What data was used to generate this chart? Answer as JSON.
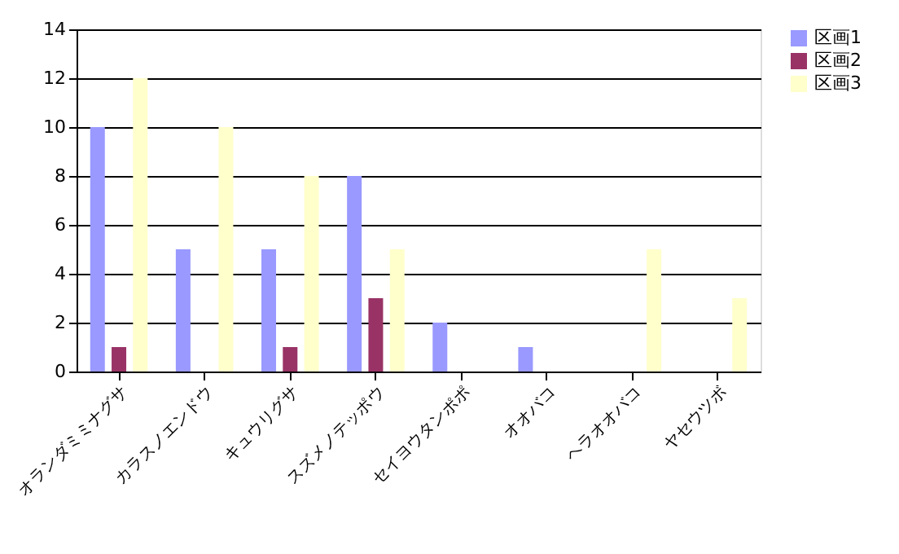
{
  "chart_data": {
    "type": "bar",
    "categories": [
      "オランダミミナグサ",
      "カラスノエンドウ",
      "キュウリグサ",
      "スズメノテッポウ",
      "セイヨウタンポポ",
      "オオバコ",
      "ヘラオオバコ",
      "ヤセウツボ"
    ],
    "series": [
      {
        "name": "区画1",
        "color": "#9999ff",
        "values": [
          10,
          5,
          5,
          8,
          2,
          1,
          0,
          0
        ]
      },
      {
        "name": "区画2",
        "color": "#993366",
        "values": [
          1,
          0,
          1,
          3,
          0,
          0,
          0,
          0
        ]
      },
      {
        "name": "区画3",
        "color": "#ffffcc",
        "values": [
          12,
          10,
          8,
          5,
          0,
          0,
          5,
          3
        ]
      }
    ],
    "ylim": [
      0,
      14
    ],
    "yticks": [
      0,
      2,
      4,
      6,
      8,
      10,
      12,
      14
    ],
    "grid": "y",
    "legend": "right"
  }
}
